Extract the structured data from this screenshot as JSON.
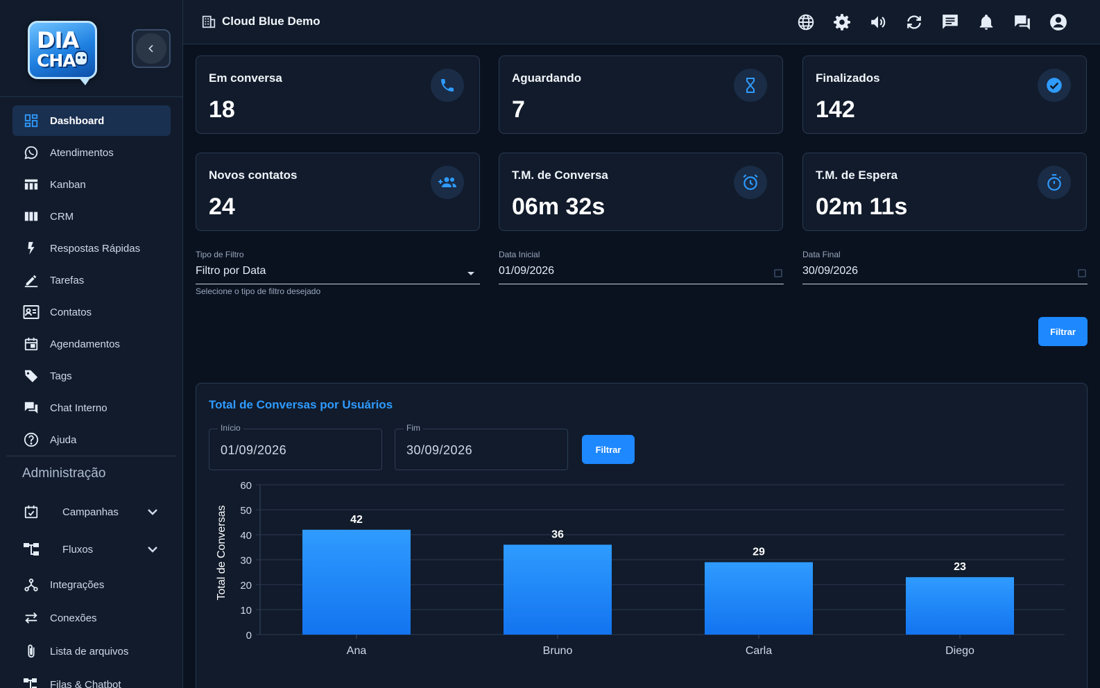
{
  "sidebar": {
    "logo_line1": "DIA",
    "logo_line2": "CHA",
    "items": [
      {
        "label": "Dashboard",
        "icon": "dashboard-icon",
        "active": true
      },
      {
        "label": "Atendimentos",
        "icon": "whatsapp-icon"
      },
      {
        "label": "Kanban",
        "icon": "kanban-icon"
      },
      {
        "label": "CRM",
        "icon": "crm-icon"
      },
      {
        "label": "Respostas Rápidas",
        "icon": "bolt-icon"
      },
      {
        "label": "Tarefas",
        "icon": "pencil-icon"
      },
      {
        "label": "Contatos",
        "icon": "contacts-icon"
      },
      {
        "label": "Agendamentos",
        "icon": "calendar-icon"
      },
      {
        "label": "Tags",
        "icon": "tag-icon"
      },
      {
        "label": "Chat Interno",
        "icon": "chat-icon"
      },
      {
        "label": "Ajuda",
        "icon": "help-icon"
      }
    ],
    "admin_title": "Administração",
    "admin_items": [
      {
        "label": "Campanhas",
        "icon": "campaign-icon",
        "expandable": true
      },
      {
        "label": "Fluxos",
        "icon": "flow-icon",
        "expandable": true
      },
      {
        "label": "Integrações",
        "icon": "integration-icon"
      },
      {
        "label": "Conexões",
        "icon": "connections-icon"
      },
      {
        "label": "Lista de arquivos",
        "icon": "attachment-icon"
      },
      {
        "label": "Filas & Chatbot",
        "icon": "queue-icon"
      }
    ]
  },
  "header": {
    "company": "Cloud Blue Demo",
    "icons": [
      "globe-icon",
      "gear-icon",
      "volume-icon",
      "refresh-icon",
      "message-icon",
      "bell-icon",
      "forum-icon",
      "account-icon"
    ]
  },
  "cards": [
    {
      "label": "Em conversa",
      "value": "18",
      "icon": "phone-icon"
    },
    {
      "label": "Aguardando",
      "value": "7",
      "icon": "hourglass-icon"
    },
    {
      "label": "Finalizados",
      "value": "142",
      "icon": "check-circle-icon"
    },
    {
      "label": "Novos contatos",
      "value": "24",
      "icon": "add-group-icon"
    },
    {
      "label": "T.M. de Conversa",
      "value": "06m 32s",
      "icon": "alarm-icon"
    },
    {
      "label": "T.M. de Espera",
      "value": "02m 11s",
      "icon": "timer-icon"
    }
  ],
  "filters": {
    "type_label": "Tipo de Filtro",
    "type_value": "Filtro por Data",
    "type_helper": "Selecione o tipo de filtro desejado",
    "start_label": "Data Inicial",
    "start_value": "01/09/2026",
    "end_label": "Data Final",
    "end_value": "30/09/2026",
    "button": "Filtrar"
  },
  "chart_panel": {
    "title": "Total de Conversas por Usuários",
    "start_label": "Início",
    "start_value": "01/09/2026",
    "end_label": "Fim",
    "end_value": "30/09/2026",
    "button": "Filtrar"
  },
  "colors": {
    "accent": "#1e88ff",
    "bar_top": "#2f9bff",
    "bar_bottom": "#1374ef",
    "title_blue": "#2f9bff"
  },
  "chart_data": {
    "type": "bar",
    "title": "Total de Conversas por Usuários",
    "categories": [
      "Ana",
      "Bruno",
      "Carla",
      "Diego"
    ],
    "values": [
      42,
      36,
      29,
      23
    ],
    "xlabel": "",
    "ylabel": "Total de Conversas",
    "ylim": [
      0,
      60
    ],
    "yticks": [
      0,
      10,
      20,
      30,
      40,
      50,
      60
    ],
    "grid": true,
    "legend": "none"
  }
}
